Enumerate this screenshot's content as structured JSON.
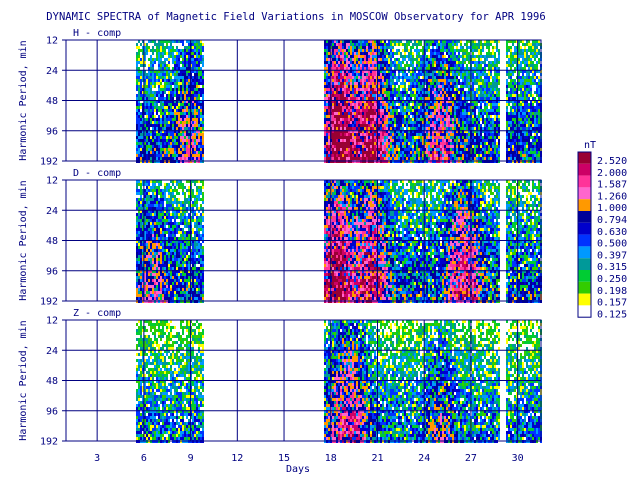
{
  "chart_data": {
    "type": "heatmap",
    "title": "DYNAMIC SPECTRA of Magnetic Field Variations in MOSCOW Observatory for APR 1996",
    "xlabel": "Days",
    "ylabel": "Harmonic Period, min",
    "x_ticks": [
      3,
      6,
      9,
      12,
      15,
      18,
      21,
      24,
      27,
      30
    ],
    "xlim": [
      1,
      31.5
    ],
    "y_ticks": [
      12,
      24,
      48,
      96,
      192
    ],
    "y_scale": "log2",
    "ylim": [
      12,
      192
    ],
    "grid": true,
    "data_intervals_days": [
      [
        5.4,
        9.8
      ],
      [
        17.5,
        28.8
      ],
      [
        29.2,
        31.5
      ]
    ],
    "panels": [
      {
        "label": "H - comp",
        "activity_peaks": [
          {
            "day": 18.5,
            "level": 2.52
          },
          {
            "day": 20.5,
            "level": 2.0
          },
          {
            "day": 8.8,
            "level": 0.5
          },
          {
            "day": 25.0,
            "level": 0.794
          }
        ]
      },
      {
        "label": "D - comp",
        "activity_peaks": [
          {
            "day": 18.3,
            "level": 2.0
          },
          {
            "day": 20.5,
            "level": 1.587
          },
          {
            "day": 6.5,
            "level": 0.5
          },
          {
            "day": 26.5,
            "level": 1.26
          }
        ]
      },
      {
        "label": "Z - comp",
        "activity_peaks": [
          {
            "day": 19.5,
            "level": 0.794
          },
          {
            "day": 18.5,
            "level": 0.63
          },
          {
            "day": 25.0,
            "level": 0.397
          }
        ]
      }
    ],
    "legend": {
      "unit": "nT",
      "levels": [
        "2.520",
        "2.000",
        "1.587",
        "1.260",
        "1.000",
        "0.794",
        "0.630",
        "0.500",
        "0.397",
        "0.315",
        "0.250",
        "0.198",
        "0.157",
        "0.125"
      ],
      "colors": [
        "#990033",
        "#cc0066",
        "#ff3399",
        "#ff66cc",
        "#ff9900",
        "#000099",
        "#0000cc",
        "#0033ff",
        "#0099ff",
        "#009999",
        "#00cc33",
        "#33cc00",
        "#ffff00",
        "#ffffff"
      ]
    }
  },
  "colors": {
    "axis": "#000080",
    "grid": "#000080",
    "background": "#ffffff"
  }
}
